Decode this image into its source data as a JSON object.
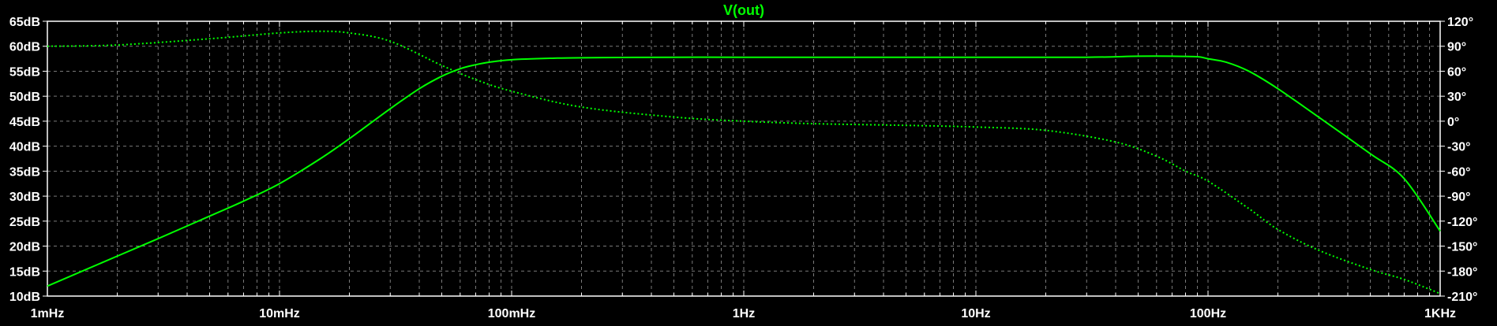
{
  "window": {
    "background": "#000000",
    "grid_color": "#7a7a7a",
    "text_color": "#ffffff"
  },
  "chart_data": {
    "type": "line",
    "title": "V(out)",
    "x_scale": "log",
    "xlim": [
      0.001,
      1000
    ],
    "xticks": [
      {
        "value": 0.001,
        "label": "1mHz"
      },
      {
        "value": 0.01,
        "label": "10mHz"
      },
      {
        "value": 0.1,
        "label": "100mHz"
      },
      {
        "value": 1,
        "label": "1Hz"
      },
      {
        "value": 10,
        "label": "10Hz"
      },
      {
        "value": 100,
        "label": "100Hz"
      },
      {
        "value": 1000,
        "label": "1KHz"
      }
    ],
    "ylim_left": [
      10,
      65
    ],
    "yticks_left": [
      {
        "value": 65,
        "label": "65dB"
      },
      {
        "value": 60,
        "label": "60dB"
      },
      {
        "value": 55,
        "label": "55dB"
      },
      {
        "value": 50,
        "label": "50dB"
      },
      {
        "value": 45,
        "label": "45dB"
      },
      {
        "value": 40,
        "label": "40dB"
      },
      {
        "value": 35,
        "label": "35dB"
      },
      {
        "value": 30,
        "label": "30dB"
      },
      {
        "value": 25,
        "label": "25dB"
      },
      {
        "value": 20,
        "label": "20dB"
      },
      {
        "value": 15,
        "label": "15dB"
      },
      {
        "value": 10,
        "label": "10dB"
      }
    ],
    "ylim_right": [
      -210,
      120
    ],
    "yticks_right": [
      {
        "value": 120,
        "label": "120°"
      },
      {
        "value": 90,
        "label": "90°"
      },
      {
        "value": 60,
        "label": "60°"
      },
      {
        "value": 30,
        "label": "30°"
      },
      {
        "value": 0,
        "label": "0°"
      },
      {
        "value": -30,
        "label": "-30°"
      },
      {
        "value": -60,
        "label": "-60°"
      },
      {
        "value": -90,
        "label": "-90°"
      },
      {
        "value": -120,
        "label": "-120°"
      },
      {
        "value": -150,
        "label": "-150°"
      },
      {
        "value": -180,
        "label": "-180°"
      },
      {
        "value": -210,
        "label": "-210°"
      }
    ],
    "grid": true,
    "series": [
      {
        "kind": "magnitude",
        "axis": "left",
        "unit": "dB",
        "color": "#00ff00",
        "style": "solid",
        "x": [
          0.001,
          0.002,
          0.003,
          0.005,
          0.007,
          0.01,
          0.015,
          0.02,
          0.03,
          0.04,
          0.05,
          0.06,
          0.07,
          0.08,
          0.1,
          0.15,
          0.2,
          0.5,
          1,
          5,
          10,
          30,
          50,
          70,
          90,
          100,
          120,
          150,
          200,
          300,
          500,
          700,
          1000
        ],
        "values": [
          12.0,
          18.0,
          21.5,
          26.0,
          29.0,
          32.5,
          37.5,
          41.5,
          47.5,
          51.5,
          54.0,
          55.5,
          56.3,
          56.8,
          57.3,
          57.6,
          57.7,
          57.8,
          57.8,
          57.8,
          57.8,
          57.8,
          58.0,
          58.0,
          57.9,
          57.5,
          56.8,
          55.0,
          51.5,
          45.8,
          38.5,
          33.5,
          23.0
        ]
      },
      {
        "kind": "phase",
        "axis": "right",
        "unit": "°",
        "color": "#00ff00",
        "style": "dotted",
        "x": [
          0.001,
          0.002,
          0.005,
          0.01,
          0.015,
          0.02,
          0.03,
          0.05,
          0.07,
          0.1,
          0.2,
          0.5,
          1,
          2,
          5,
          10,
          20,
          40,
          60,
          80,
          100,
          150,
          200,
          300,
          500,
          700,
          1000
        ],
        "values": [
          90.0,
          91.5,
          99.0,
          106.0,
          108.0,
          106.0,
          96.0,
          67.0,
          50.0,
          36.0,
          17.0,
          5.0,
          0.0,
          -3.0,
          -5.0,
          -7.0,
          -11.0,
          -25.0,
          -42.0,
          -60.0,
          -72.0,
          -105.0,
          -130.0,
          -155.0,
          -178.0,
          -190.0,
          -207.0
        ]
      }
    ]
  }
}
